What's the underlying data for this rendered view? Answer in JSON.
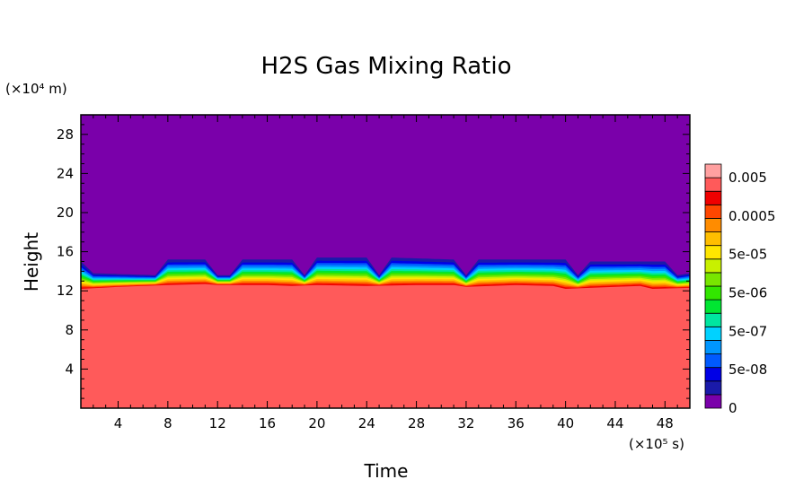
{
  "chart_data": {
    "type": "heatmap",
    "title": "H2S Gas Mixing Ratio",
    "xlabel": "Time",
    "ylabel": "Height",
    "x_unit": "(×10⁵ s)",
    "y_unit": "(×10⁴ m)",
    "xlim": [
      1,
      50
    ],
    "ylim": [
      0,
      30
    ],
    "x_ticks": [
      "4",
      "8",
      "12",
      "16",
      "20",
      "24",
      "28",
      "32",
      "36",
      "40",
      "44",
      "48"
    ],
    "y_ticks": [
      "4",
      "8",
      "12",
      "16",
      "20",
      "24",
      "28"
    ],
    "colorbar_labels": [
      "0.005",
      "0.0005",
      "5e-05",
      "5e-06",
      "5e-07",
      "5e-08",
      "0"
    ],
    "colorbar_levels": [
      {
        "color": "#7a00aa"
      },
      {
        "color": "#1a1aaa"
      },
      {
        "color": "#0000e6"
      },
      {
        "color": "#005aff"
      },
      {
        "color": "#0096ff"
      },
      {
        "color": "#00d2ff"
      },
      {
        "color": "#00e6a0"
      },
      {
        "color": "#00e632"
      },
      {
        "color": "#32e600"
      },
      {
        "color": "#78e600"
      },
      {
        "color": "#c8f000"
      },
      {
        "color": "#ffe600"
      },
      {
        "color": "#ffbe00"
      },
      {
        "color": "#ff8c00"
      },
      {
        "color": "#ff4600"
      },
      {
        "color": "#f00000"
      },
      {
        "color": "#ff5a5a"
      },
      {
        "color": "#ffa0a0"
      }
    ],
    "background_color": "#7a00aa",
    "fill_color": "#ff5a5a",
    "surface_boundary_km10": [
      [
        1,
        12.2
      ],
      [
        4,
        12.4
      ],
      [
        8,
        12.6
      ],
      [
        11,
        12.7
      ],
      [
        12,
        12.6
      ],
      [
        16,
        12.6
      ],
      [
        18,
        12.5
      ],
      [
        20,
        12.6
      ],
      [
        24,
        12.5
      ],
      [
        28,
        12.6
      ],
      [
        31,
        12.6
      ],
      [
        32,
        12.4
      ],
      [
        36,
        12.6
      ],
      [
        39,
        12.5
      ],
      [
        40,
        12.2
      ],
      [
        44,
        12.4
      ],
      [
        46,
        12.5
      ],
      [
        47,
        12.2
      ],
      [
        50,
        12.3
      ]
    ],
    "plume_top_km10": [
      [
        1,
        15.0
      ],
      [
        2,
        13.8
      ],
      [
        7,
        13.6
      ],
      [
        8,
        15.2
      ],
      [
        11,
        15.2
      ],
      [
        12,
        13.6
      ],
      [
        13,
        13.6
      ],
      [
        14,
        15.2
      ],
      [
        18,
        15.2
      ],
      [
        19,
        13.6
      ],
      [
        20,
        15.4
      ],
      [
        24,
        15.4
      ],
      [
        25,
        13.6
      ],
      [
        26,
        15.4
      ],
      [
        31,
        15.2
      ],
      [
        32,
        13.6
      ],
      [
        33,
        15.2
      ],
      [
        40,
        15.2
      ],
      [
        41,
        13.6
      ],
      [
        42,
        15.0
      ],
      [
        48,
        15.0
      ],
      [
        49,
        13.6
      ],
      [
        50,
        13.8
      ]
    ]
  }
}
